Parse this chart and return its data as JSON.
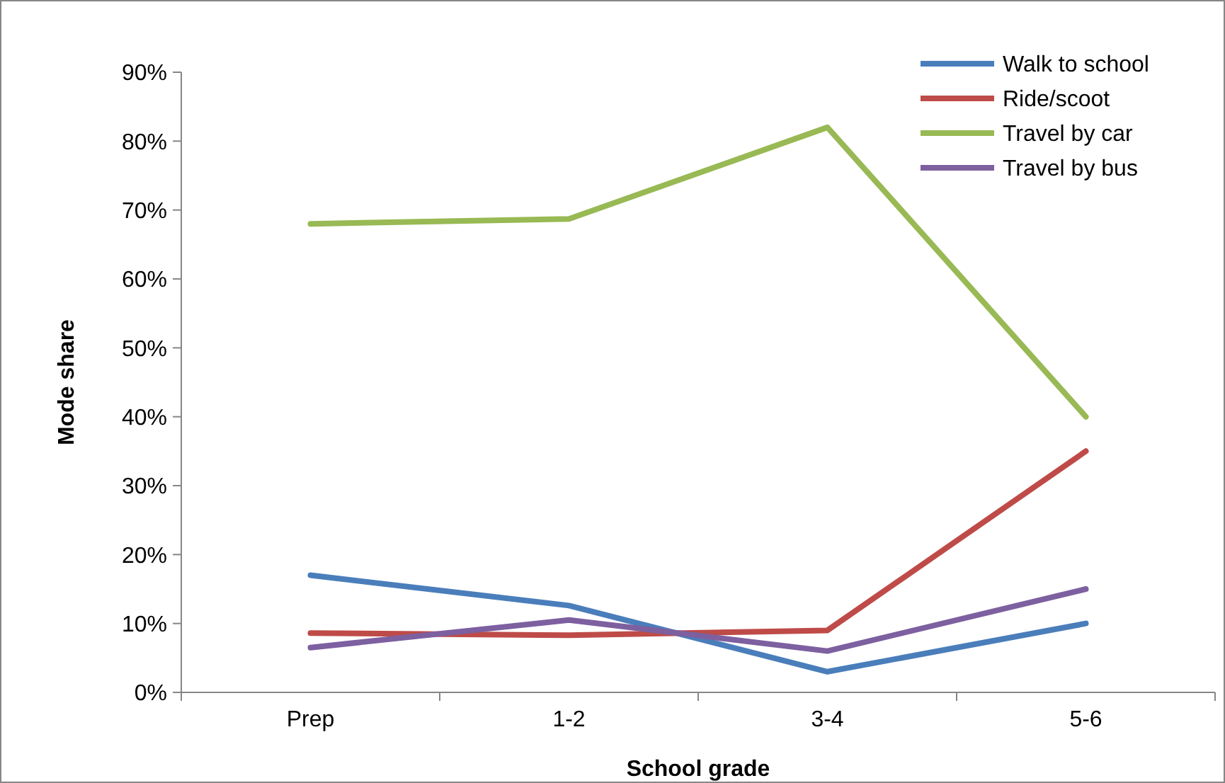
{
  "chart_data": {
    "type": "line",
    "xlabel": "School grade",
    "ylabel": "Mode share",
    "categories": [
      "Prep",
      "1-2",
      "3-4",
      "5-6"
    ],
    "series": [
      {
        "name": "Walk to school",
        "color": "#4a7ebb",
        "values": [
          17,
          12.6,
          3,
          10
        ]
      },
      {
        "name": "Ride/scoot",
        "color": "#be4b48",
        "values": [
          8.6,
          8.3,
          9,
          35
        ]
      },
      {
        "name": "Travel by car",
        "color": "#98b954",
        "values": [
          68,
          68.7,
          82,
          40
        ]
      },
      {
        "name": "Travel by bus",
        "color": "#7d60a0",
        "values": [
          6.5,
          10.5,
          6,
          15
        ]
      }
    ],
    "ylim": [
      0,
      90
    ],
    "yticks": [
      {
        "value": 0,
        "label": "0%"
      },
      {
        "value": 10,
        "label": "10%"
      },
      {
        "value": 20,
        "label": "20%"
      },
      {
        "value": 30,
        "label": "30%"
      },
      {
        "value": 40,
        "label": "40%"
      },
      {
        "value": 50,
        "label": "50%"
      },
      {
        "value": 60,
        "label": "60%"
      },
      {
        "value": 70,
        "label": "70%"
      },
      {
        "value": 80,
        "label": "80%"
      },
      {
        "value": 90,
        "label": "90%"
      }
    ],
    "legend": "top right",
    "grid": false,
    "line_style": "solid"
  }
}
